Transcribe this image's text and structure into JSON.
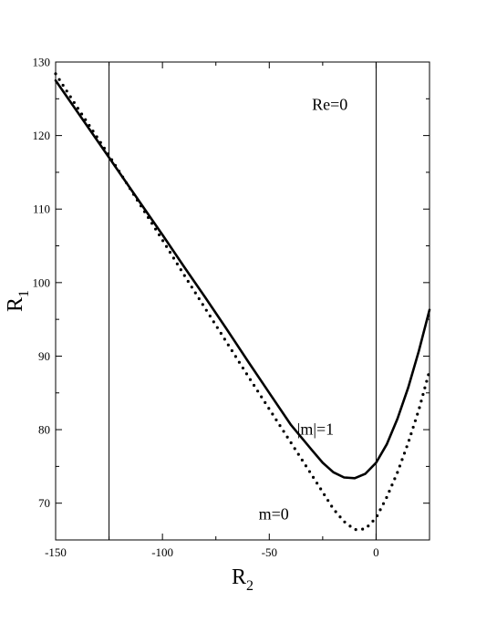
{
  "chart_data": {
    "type": "line",
    "title": "",
    "xlabel": "R",
    "xlabel_sub": "2",
    "ylabel": "R",
    "ylabel_sub": "1",
    "xlim": [
      -150,
      25
    ],
    "ylim": [
      65,
      130
    ],
    "xticks": [
      -150,
      -100,
      -50,
      0
    ],
    "yticks": [
      70,
      80,
      90,
      100,
      110,
      120,
      130
    ],
    "grid": false,
    "vertical_lines": [
      -125,
      0
    ],
    "series": [
      {
        "name": "|m|=1",
        "style": "solid",
        "color": "#000000",
        "x": [
          -150,
          -140,
          -130,
          -125,
          -120,
          -110,
          -100,
          -90,
          -80,
          -70,
          -60,
          -50,
          -40,
          -30,
          -25,
          -20,
          -15,
          -10,
          -5,
          0,
          5,
          10,
          15,
          20,
          25
        ],
        "y": [
          127.5,
          123.3,
          119.1,
          117.0,
          114.9,
          110.7,
          106.5,
          102.2,
          98.0,
          93.7,
          89.3,
          85.0,
          80.7,
          77.2,
          75.5,
          74.2,
          73.5,
          73.4,
          74.0,
          75.5,
          78.0,
          81.5,
          85.7,
          90.7,
          96.3
        ]
      },
      {
        "name": "m=0",
        "style": "dotted",
        "color": "#000000",
        "x": [
          -150,
          -140,
          -130,
          -125,
          -120,
          -110,
          -100,
          -90,
          -80,
          -70,
          -60,
          -50,
          -40,
          -30,
          -25,
          -20,
          -15,
          -10,
          -5,
          0,
          5,
          10,
          15,
          20,
          25
        ],
        "y": [
          128.4,
          123.9,
          119.5,
          117.3,
          115.0,
          110.4,
          105.8,
          101.1,
          96.5,
          91.9,
          87.3,
          82.8,
          78.3,
          73.8,
          71.5,
          69.2,
          67.5,
          66.4,
          66.5,
          68.0,
          70.8,
          74.2,
          78.2,
          82.7,
          88.0
        ]
      }
    ],
    "annotations": [
      {
        "text": "Re=0",
        "x": -30,
        "y": 123.5
      },
      {
        "text": "|m|=1",
        "x": -37,
        "y": 79.3
      },
      {
        "text": "m=0",
        "x": -55,
        "y": 67.8
      }
    ]
  }
}
